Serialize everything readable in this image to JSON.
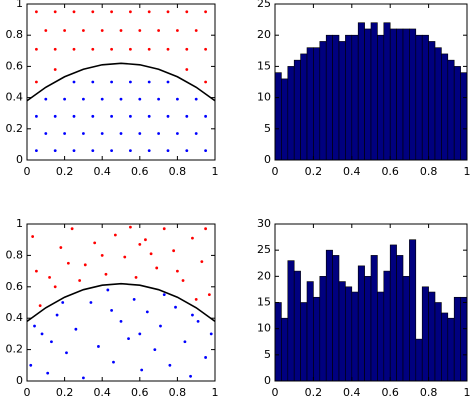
{
  "chart_data": [
    {
      "type": "scatter",
      "xlim": [
        0,
        1
      ],
      "ylim": [
        0,
        1
      ],
      "xticks": [
        0,
        0.2,
        0.4,
        0.6,
        0.8,
        1
      ],
      "yticks": [
        0,
        0.2,
        0.4,
        0.6,
        0.8,
        1
      ],
      "series": [
        {
          "color": "#ff0000",
          "x": [
            0.05,
            0.15,
            0.25,
            0.35,
            0.45,
            0.55,
            0.65,
            0.75,
            0.85,
            0.95,
            0.1,
            0.2,
            0.3,
            0.4,
            0.5,
            0.6,
            0.7,
            0.8,
            0.9,
            0.05,
            0.15,
            0.25,
            0.35,
            0.45,
            0.55,
            0.65,
            0.75,
            0.85,
            0.95,
            0.05,
            0.95,
            0.15,
            0.85
          ],
          "y": [
            0.95,
            0.95,
            0.95,
            0.95,
            0.95,
            0.95,
            0.95,
            0.95,
            0.95,
            0.95,
            0.83,
            0.83,
            0.83,
            0.83,
            0.83,
            0.83,
            0.83,
            0.83,
            0.83,
            0.71,
            0.71,
            0.71,
            0.71,
            0.71,
            0.71,
            0.71,
            0.71,
            0.71,
            0.71,
            0.5,
            0.5,
            0.58,
            0.58
          ]
        },
        {
          "color": "#0000ff",
          "x": [
            0.05,
            0.15,
            0.25,
            0.35,
            0.45,
            0.55,
            0.65,
            0.75,
            0.85,
            0.95,
            0.1,
            0.2,
            0.3,
            0.4,
            0.5,
            0.6,
            0.7,
            0.8,
            0.9,
            0.05,
            0.15,
            0.25,
            0.35,
            0.45,
            0.55,
            0.65,
            0.75,
            0.85,
            0.95,
            0.1,
            0.2,
            0.3,
            0.4,
            0.5,
            0.6,
            0.7,
            0.8,
            0.9,
            0.25,
            0.35,
            0.45,
            0.55,
            0.65,
            0.75
          ],
          "y": [
            0.06,
            0.06,
            0.06,
            0.06,
            0.06,
            0.06,
            0.06,
            0.06,
            0.06,
            0.06,
            0.17,
            0.17,
            0.17,
            0.17,
            0.17,
            0.17,
            0.17,
            0.17,
            0.17,
            0.28,
            0.28,
            0.28,
            0.28,
            0.28,
            0.28,
            0.28,
            0.28,
            0.28,
            0.28,
            0.39,
            0.39,
            0.39,
            0.39,
            0.39,
            0.39,
            0.39,
            0.39,
            0.39,
            0.5,
            0.5,
            0.5,
            0.5,
            0.5,
            0.5
          ]
        }
      ],
      "curve": {
        "color": "#000000",
        "x": [
          0,
          0.1,
          0.2,
          0.3,
          0.4,
          0.5,
          0.6,
          0.7,
          0.8,
          0.9,
          1
        ],
        "y": [
          0.38,
          0.4664,
          0.5336,
          0.5816,
          0.6104,
          0.62,
          0.6104,
          0.5816,
          0.5336,
          0.4664,
          0.38
        ]
      }
    },
    {
      "type": "histogram",
      "color": "#00007f",
      "xlim": [
        0,
        1
      ],
      "ylim": [
        0,
        25
      ],
      "xticks": [
        0,
        0.2,
        0.4,
        0.6,
        0.8,
        1
      ],
      "yticks": [
        0,
        5,
        10,
        15,
        20,
        25
      ],
      "bins": [
        0,
        0.0333,
        0.0667,
        0.1,
        0.1333,
        0.1667,
        0.2,
        0.2333,
        0.2667,
        0.3,
        0.3333,
        0.3667,
        0.4,
        0.4333,
        0.4667,
        0.5,
        0.5333,
        0.5667,
        0.6,
        0.6333,
        0.6667,
        0.7,
        0.7333,
        0.7667,
        0.8,
        0.8333,
        0.8667,
        0.9,
        0.9333,
        0.9667,
        1
      ],
      "values": [
        14,
        13,
        15,
        16,
        17,
        18,
        18,
        19,
        20,
        20,
        19,
        20,
        20,
        22,
        21,
        22,
        20,
        22,
        21,
        21,
        21,
        21,
        20,
        20,
        19,
        18,
        17,
        16,
        15,
        14
      ]
    },
    {
      "type": "scatter",
      "xlim": [
        0,
        1
      ],
      "ylim": [
        0,
        1
      ],
      "xticks": [
        0,
        0.2,
        0.4,
        0.6,
        0.8,
        1
      ],
      "yticks": [
        0,
        0.2,
        0.4,
        0.6,
        0.8,
        1
      ],
      "series": [
        {
          "color": "#ff0000",
          "x": [
            0.03,
            0.12,
            0.18,
            0.24,
            0.31,
            0.36,
            0.42,
            0.47,
            0.52,
            0.58,
            0.63,
            0.69,
            0.73,
            0.78,
            0.83,
            0.88,
            0.93,
            0.97,
            0.07,
            0.15,
            0.22,
            0.55,
            0.66,
            0.9,
            0.05,
            0.4,
            0.8,
            0.28,
            0.95,
            0.6
          ],
          "y": [
            0.92,
            0.66,
            0.85,
            0.97,
            0.74,
            0.88,
            0.68,
            0.93,
            0.79,
            0.66,
            0.9,
            0.72,
            0.97,
            0.83,
            0.64,
            0.91,
            0.76,
            0.55,
            0.48,
            0.6,
            0.75,
            0.98,
            0.81,
            0.52,
            0.7,
            0.8,
            0.7,
            0.64,
            0.97,
            0.87
          ]
        },
        {
          "color": "#0000ff",
          "x": [
            0.02,
            0.08,
            0.11,
            0.16,
            0.21,
            0.26,
            0.3,
            0.34,
            0.38,
            0.43,
            0.46,
            0.5,
            0.54,
            0.57,
            0.61,
            0.64,
            0.68,
            0.71,
            0.76,
            0.79,
            0.84,
            0.87,
            0.91,
            0.95,
            0.98,
            0.04,
            0.13,
            0.19,
            0.45,
            0.73,
            0.88,
            0.6
          ],
          "y": [
            0.1,
            0.3,
            0.05,
            0.42,
            0.18,
            0.33,
            0.02,
            0.5,
            0.22,
            0.58,
            0.12,
            0.38,
            0.27,
            0.52,
            0.07,
            0.44,
            0.2,
            0.35,
            0.1,
            0.47,
            0.25,
            0.03,
            0.38,
            0.15,
            0.3,
            0.35,
            0.25,
            0.5,
            0.45,
            0.55,
            0.42,
            0.3
          ]
        }
      ],
      "curve": {
        "color": "#000000",
        "x": [
          0,
          0.1,
          0.2,
          0.3,
          0.4,
          0.5,
          0.6,
          0.7,
          0.8,
          0.9,
          1
        ],
        "y": [
          0.38,
          0.4664,
          0.5336,
          0.5816,
          0.6104,
          0.62,
          0.6104,
          0.5816,
          0.5336,
          0.4664,
          0.38
        ]
      }
    },
    {
      "type": "histogram",
      "color": "#00007f",
      "xlim": [
        0,
        1
      ],
      "ylim": [
        0,
        30
      ],
      "xticks": [
        0,
        0.2,
        0.4,
        0.6,
        0.8,
        1
      ],
      "yticks": [
        0,
        5,
        10,
        15,
        20,
        25,
        30
      ],
      "bins": [
        0,
        0.0333,
        0.0667,
        0.1,
        0.1333,
        0.1667,
        0.2,
        0.2333,
        0.2667,
        0.3,
        0.3333,
        0.3667,
        0.4,
        0.4333,
        0.4667,
        0.5,
        0.5333,
        0.5667,
        0.6,
        0.6333,
        0.6667,
        0.7,
        0.7333,
        0.7667,
        0.8,
        0.8333,
        0.8667,
        0.9,
        0.9333,
        0.9667,
        1
      ],
      "values": [
        15,
        12,
        23,
        21,
        15,
        19,
        16,
        20,
        25,
        24,
        19,
        18,
        17,
        22,
        20,
        24,
        17,
        21,
        26,
        24,
        20,
        27,
        8,
        18,
        17,
        15,
        13,
        12,
        16,
        16
      ]
    }
  ]
}
